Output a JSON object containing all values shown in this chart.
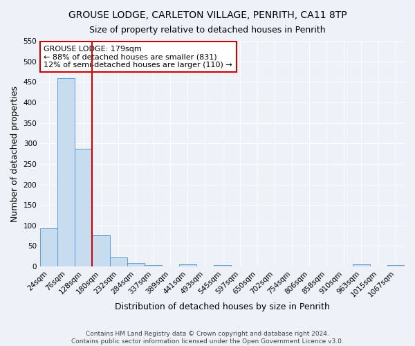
{
  "title": "GROUSE LODGE, CARLETON VILLAGE, PENRITH, CA11 8TP",
  "subtitle": "Size of property relative to detached houses in Penrith",
  "xlabel": "Distribution of detached houses by size in Penrith",
  "ylabel": "Number of detached properties",
  "bin_labels": [
    "24sqm",
    "76sqm",
    "128sqm",
    "180sqm",
    "232sqm",
    "284sqm",
    "337sqm",
    "389sqm",
    "441sqm",
    "493sqm",
    "545sqm",
    "597sqm",
    "650sqm",
    "702sqm",
    "754sqm",
    "806sqm",
    "858sqm",
    "910sqm",
    "963sqm",
    "1015sqm",
    "1067sqm"
  ],
  "bar_values": [
    93,
    459,
    287,
    76,
    22,
    9,
    4,
    0,
    5,
    0,
    4,
    0,
    0,
    0,
    0,
    0,
    0,
    0,
    5,
    0,
    4
  ],
  "bar_color": "#c8dcf0",
  "bar_edge_color": "#5b9bd5",
  "vline_color": "#cc0000",
  "annotation_text": "GROUSE LODGE: 179sqm\n← 88% of detached houses are smaller (831)\n12% of semi-detached houses are larger (110) →",
  "annotation_box_color": "#ffffff",
  "annotation_box_edge_color": "#cc0000",
  "ylim": [
    0,
    550
  ],
  "yticks": [
    0,
    50,
    100,
    150,
    200,
    250,
    300,
    350,
    400,
    450,
    500,
    550
  ],
  "footer_text": "Contains HM Land Registry data © Crown copyright and database right 2024.\nContains public sector information licensed under the Open Government Licence v3.0.",
  "background_color": "#eef2f8",
  "grid_color": "#ffffff",
  "title_fontsize": 10,
  "subtitle_fontsize": 9,
  "axis_label_fontsize": 9,
  "tick_fontsize": 7.5,
  "annotation_fontsize": 8,
  "footer_fontsize": 6.5
}
